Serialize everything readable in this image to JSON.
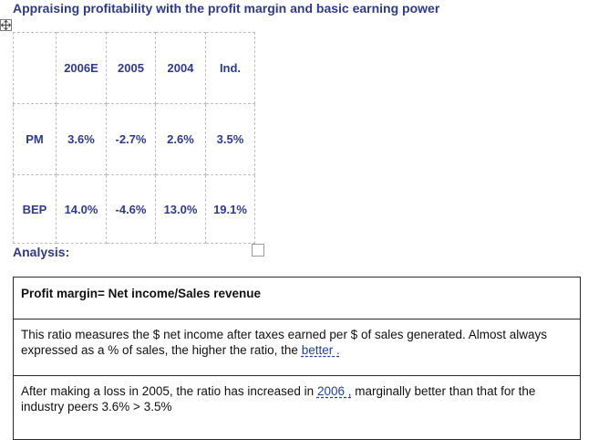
{
  "title": "Appraising profitability with the profit margin and basic earning power",
  "ratio_table": {
    "columns": [
      "",
      "2006E",
      "2005",
      "2004",
      "Ind."
    ],
    "rows": [
      {
        "label": "PM",
        "values": [
          "3.6%",
          "-2.7%",
          "2.6%",
          "3.5%"
        ]
      },
      {
        "label": "BEP",
        "values": [
          "14.0%",
          "-4.6%",
          "13.0%",
          "19.1%"
        ]
      }
    ]
  },
  "analysis": {
    "label": "Analysis:",
    "heading": "Profit margin= Net income/Sales revenue",
    "para1_text": "This ratio measures the $ net income after taxes earned per $ of sales generated. Almost always expressed as a % of sales, the higher the ratio, the ",
    "para1_answer": "better .",
    "para2_text_before": "After making a loss in 2005, the ratio has increased in ",
    "para2_answer": "2006 ,",
    "para2_text_after": " marginally better than that for the industry peers 3.6% > 3.5%"
  },
  "icons": {
    "move_handle": "move-arrows-icon",
    "resize_box": "checkbox-icon"
  },
  "colors": {
    "title": "#2e3a8c",
    "answer": "#1f3fa0",
    "border": "#2b2b2b",
    "dashed": "#bdbdbd"
  }
}
